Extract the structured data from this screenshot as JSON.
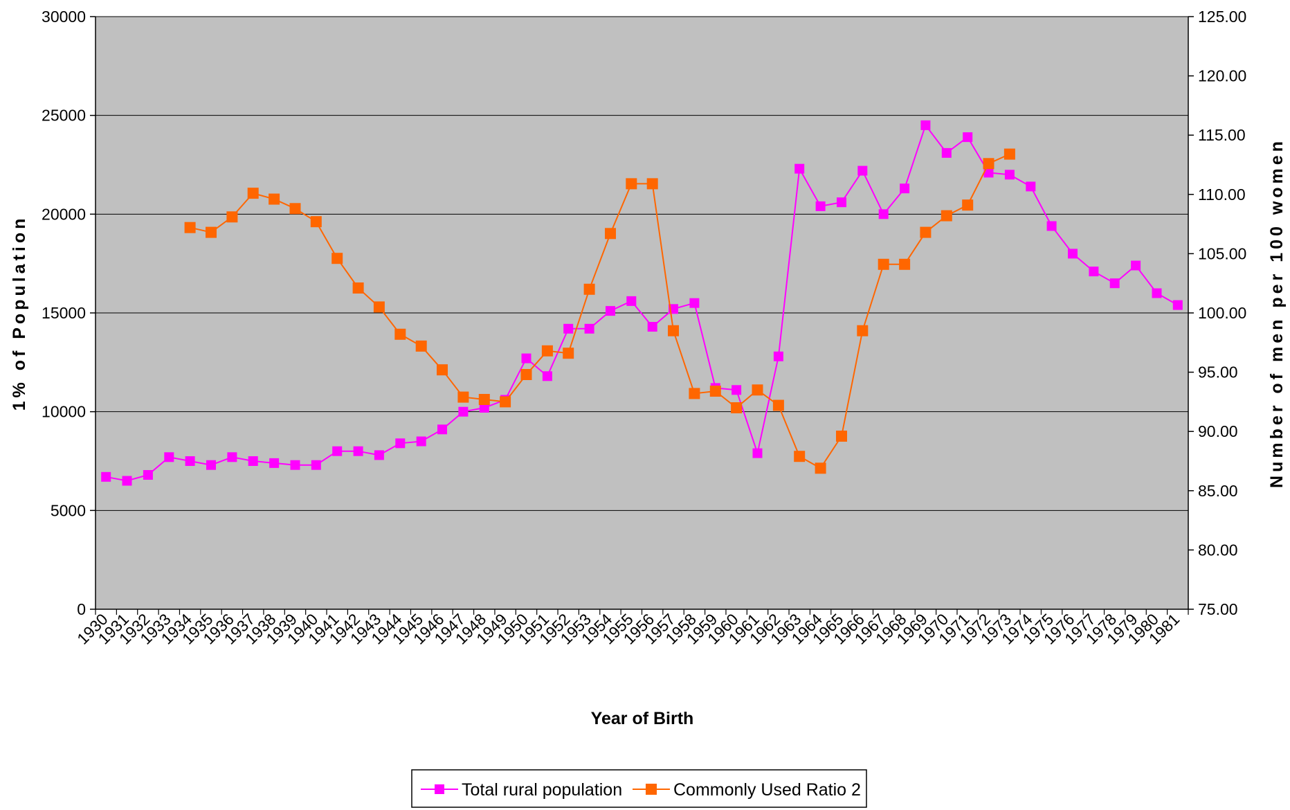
{
  "chart_data": {
    "type": "line",
    "xlabel": "Year of Birth",
    "ylabel_left": "1% of Population",
    "ylabel_right": "Number of men per 100 women",
    "categories": [
      "1930",
      "1931",
      "1932",
      "1933",
      "1934",
      "1935",
      "1936",
      "1937",
      "1938",
      "1939",
      "1940",
      "1941",
      "1942",
      "1943",
      "1944",
      "1945",
      "1946",
      "1947",
      "1948",
      "1949",
      "1950",
      "1951",
      "1952",
      "1953",
      "1954",
      "1955",
      "1956",
      "1957",
      "1958",
      "1959",
      "1960",
      "1961",
      "1962",
      "1963",
      "1964",
      "1965",
      "1966",
      "1967",
      "1968",
      "1969",
      "1970",
      "1971",
      "1972",
      "1973",
      "1974",
      "1975",
      "1976",
      "1977",
      "1978",
      "1979",
      "1980",
      "1981"
    ],
    "ylim_left": [
      0,
      30000
    ],
    "yticks_left": [
      "0",
      "5000",
      "10000",
      "15000",
      "20000",
      "25000",
      "30000"
    ],
    "ylim_right": [
      75,
      125
    ],
    "yticks_right": [
      "75.00",
      "80.00",
      "85.00",
      "90.00",
      "95.00",
      "100.00",
      "105.00",
      "110.00",
      "115.00",
      "120.00",
      "125.00"
    ],
    "grid": "horizontal",
    "legend_position": "bottom",
    "plot_background": "#c0c0c0",
    "series": [
      {
        "name": "Total rural population",
        "axis": "left",
        "color": "#ff00ff",
        "marker": "square",
        "values": [
          6700,
          6500,
          6800,
          7700,
          7500,
          7300,
          7700,
          7500,
          7400,
          7300,
          7300,
          8000,
          8000,
          7800,
          8400,
          8500,
          9100,
          10000,
          10200,
          10600,
          12700,
          11800,
          14200,
          14200,
          15100,
          15600,
          14300,
          15200,
          15500,
          11200,
          11100,
          7900,
          12800,
          22300,
          20400,
          20600,
          22200,
          20000,
          21300,
          24500,
          23100,
          23900,
          22100,
          22000,
          21400,
          19400,
          18000,
          17100,
          16500,
          17400,
          16000,
          15400
        ]
      },
      {
        "name": "Commonly Used Ratio 2",
        "axis": "right",
        "color": "#ff6600",
        "marker": "square",
        "values": [
          null,
          null,
          null,
          null,
          107.2,
          106.8,
          108.1,
          110.1,
          109.6,
          108.8,
          107.7,
          104.6,
          102.1,
          100.5,
          98.2,
          97.2,
          95.2,
          92.9,
          92.7,
          92.5,
          94.8,
          96.8,
          96.6,
          102.0,
          106.7,
          110.9,
          110.9,
          98.5,
          93.2,
          93.4,
          92.0,
          93.5,
          92.2,
          87.9,
          86.9,
          89.6,
          98.5,
          104.1,
          104.1,
          106.8,
          108.2,
          109.1,
          112.6,
          113.4,
          null,
          null,
          null,
          null,
          null,
          null,
          null,
          null
        ]
      }
    ]
  }
}
